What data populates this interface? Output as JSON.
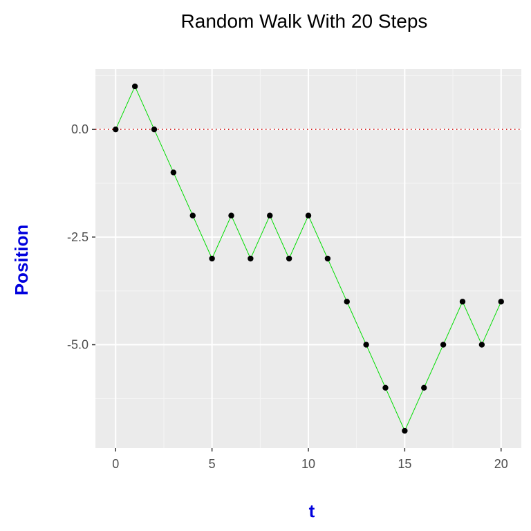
{
  "chart_data": {
    "type": "line",
    "title": "Random Walk With 20 Steps",
    "xlabel": "t",
    "ylabel": "Position",
    "x": [
      0,
      1,
      2,
      3,
      4,
      5,
      6,
      7,
      8,
      9,
      10,
      11,
      12,
      13,
      14,
      15,
      16,
      17,
      18,
      19,
      20
    ],
    "series": [
      {
        "values": [
          0,
          1,
          0,
          -1,
          -2,
          -3,
          -2,
          -3,
          -2,
          -3,
          -2,
          -3,
          -4,
          -5,
          -6,
          -7,
          -6,
          -5,
          -4,
          -5,
          -4
        ]
      }
    ],
    "xlim": [
      -1.05,
      21.05
    ],
    "ylim": [
      -7.4,
      1.4
    ],
    "x_ticks": [
      0,
      5,
      10,
      15,
      20
    ],
    "x_tick_labels": [
      "0",
      "5",
      "10",
      "15",
      "20"
    ],
    "y_ticks": [
      0,
      -2.5,
      -5
    ],
    "y_tick_labels": [
      "0.0",
      "-2.5",
      "-5.0"
    ],
    "y_minor_ticks": [
      1.25,
      -1.25,
      -3.75,
      -6.25
    ],
    "x_minor_ticks": [
      2.5,
      7.5,
      12.5,
      17.5
    ],
    "reference_line": {
      "y": 0,
      "style": "dotted"
    },
    "grid": true,
    "legend": "none",
    "colors": {
      "panel_bg": "#ebebeb",
      "grid_major": "#ffffff",
      "grid_minor": "#f5f5f5",
      "line": "#00dd00",
      "points": "#000000",
      "reference_line": "#cc0000",
      "axis_title": "#0000dd"
    }
  }
}
